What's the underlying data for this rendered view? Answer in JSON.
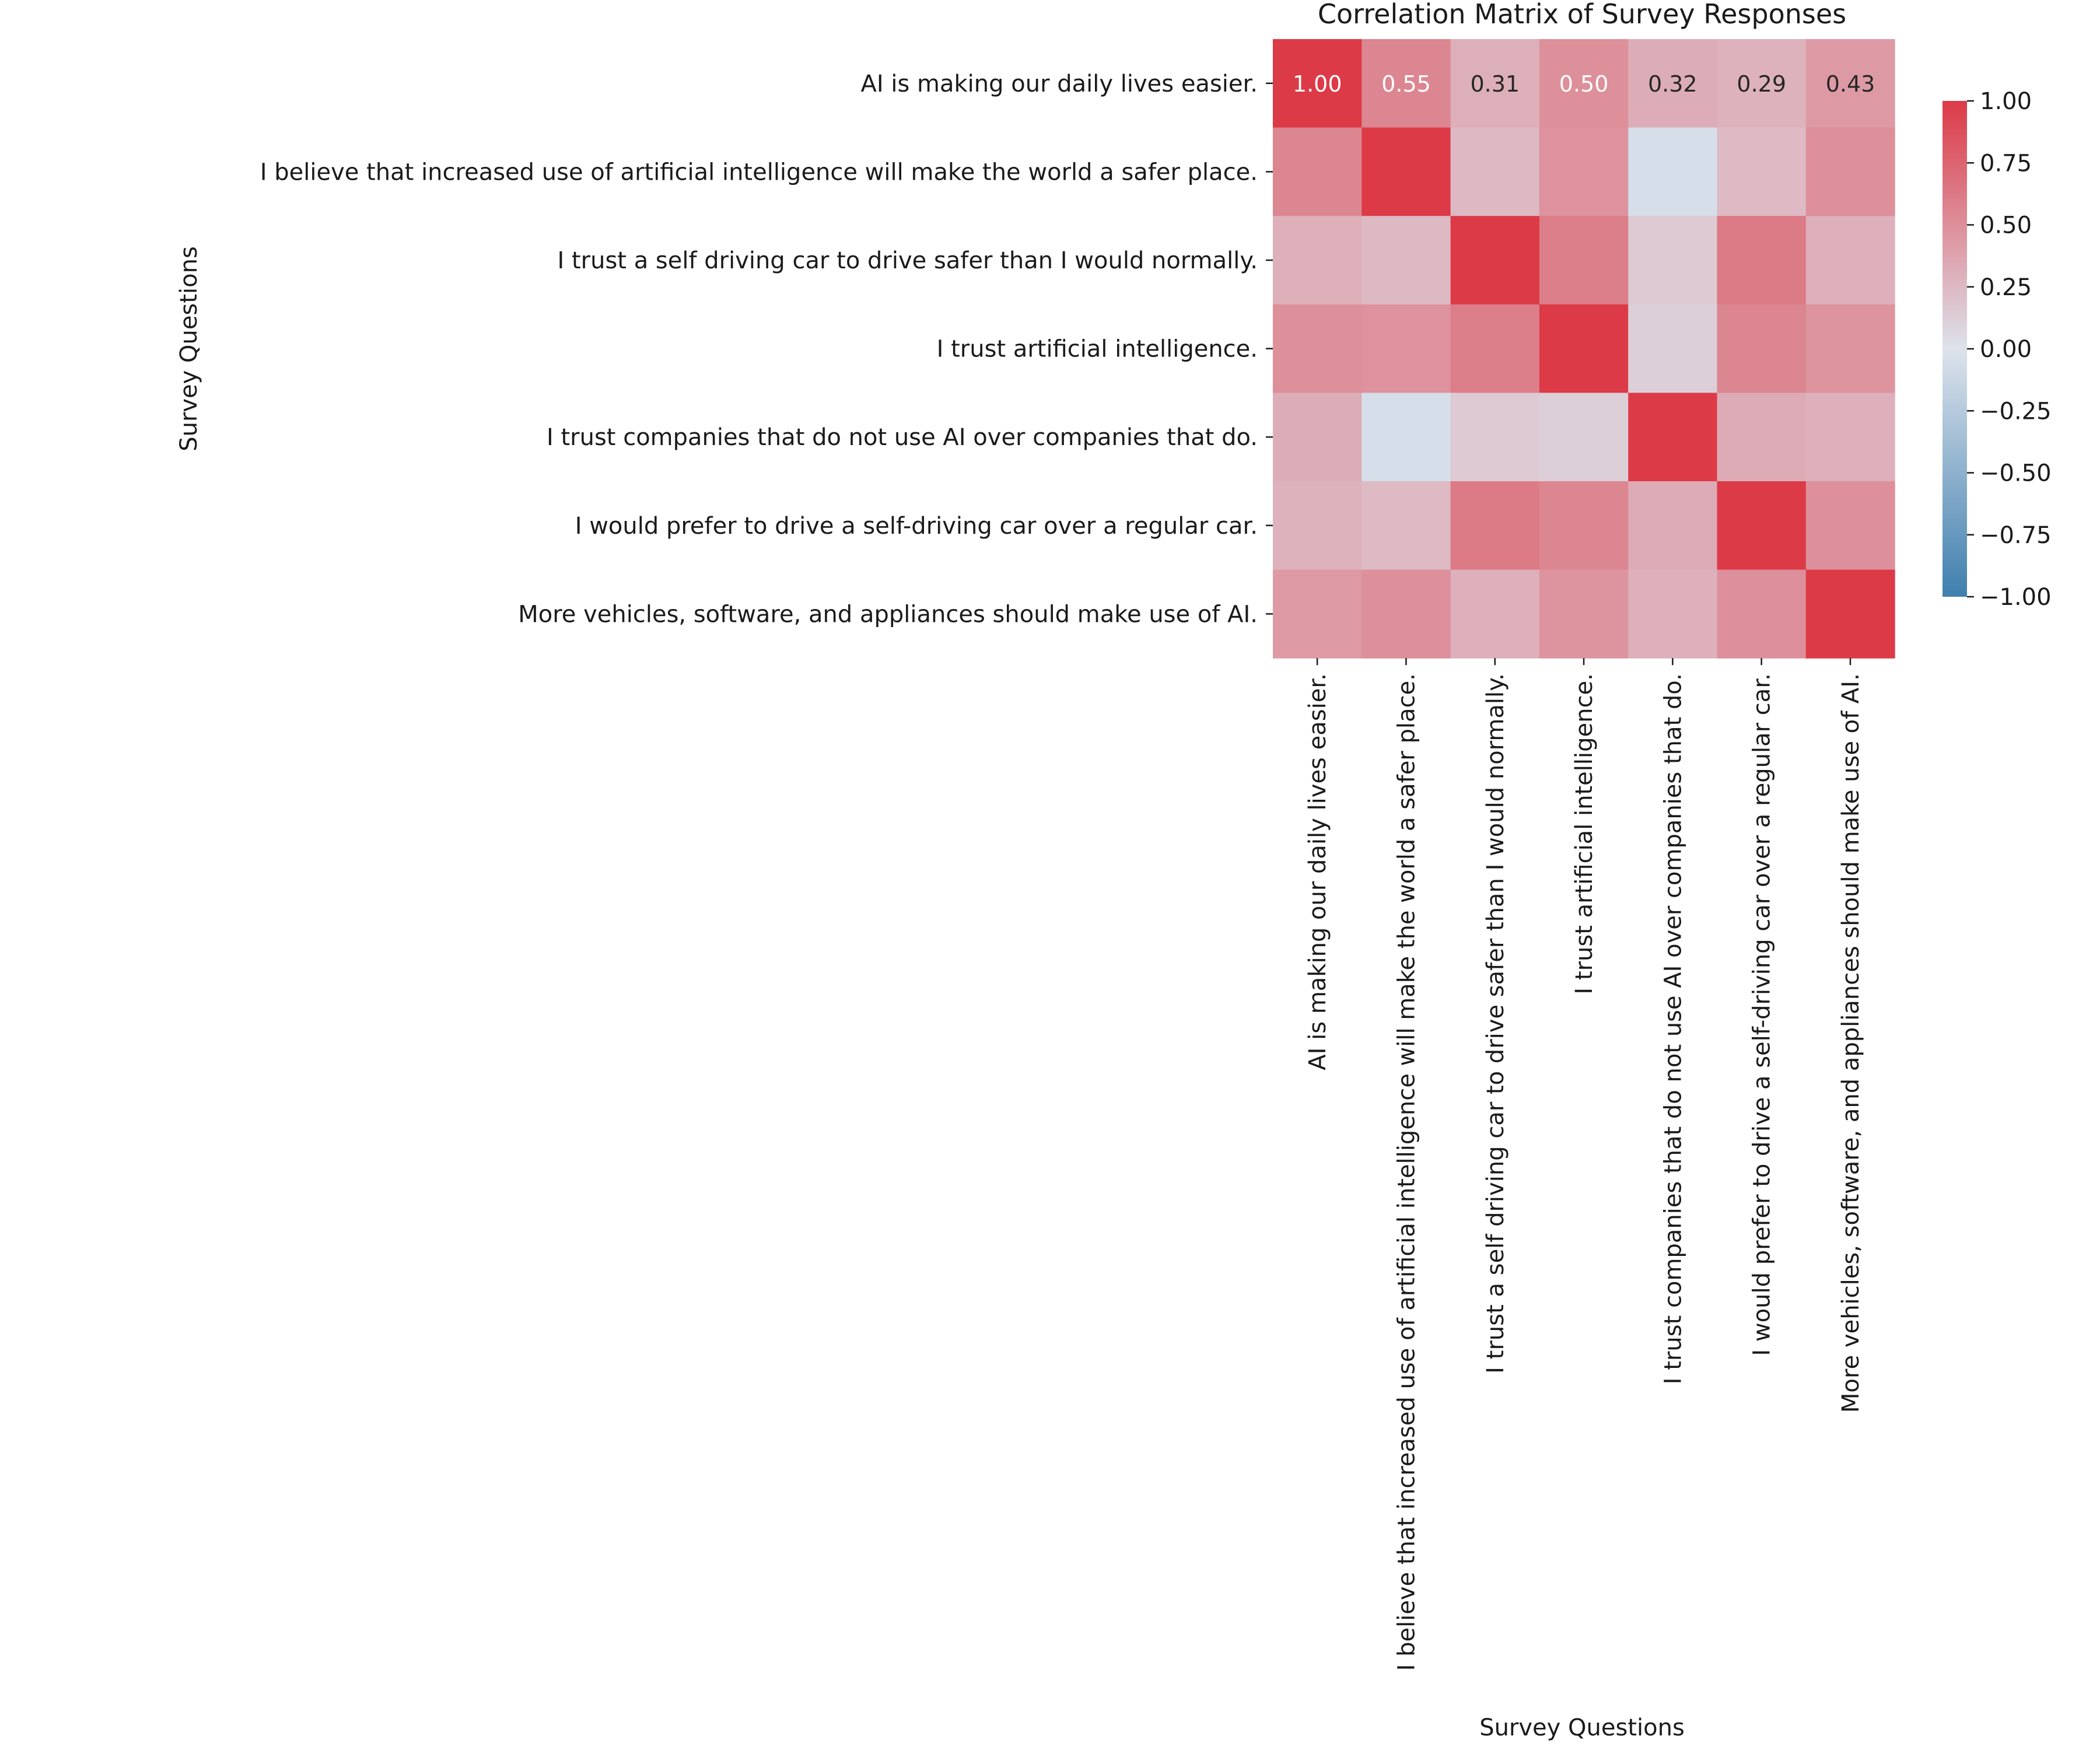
{
  "chart_data": {
    "type": "heatmap",
    "title": "Correlation Matrix of Survey Responses",
    "xlabel": "Survey Questions",
    "ylabel": "Survey Questions",
    "labels": [
      "AI is making our daily lives easier.",
      "I believe that increased use of artificial intelligence will make the world a safer place.",
      "I trust a self driving car to drive safer than I would normally.",
      "I trust artificial intelligence.",
      "I trust companies that do not use AI over companies that do.",
      "I would prefer to drive a self-driving car over a regular car.",
      "More vehicles, software, and appliances should make use of AI."
    ],
    "matrix": [
      [
        1.0,
        0.55,
        0.31,
        0.5,
        0.32,
        0.29,
        0.43
      ],
      [
        0.55,
        1.0,
        0.25,
        0.48,
        -0.05,
        0.24,
        0.5
      ],
      [
        0.31,
        0.25,
        1.0,
        0.6,
        0.15,
        0.62,
        0.3
      ],
      [
        0.5,
        0.48,
        0.6,
        1.0,
        0.12,
        0.55,
        0.47
      ],
      [
        0.32,
        -0.05,
        0.15,
        0.12,
        1.0,
        0.33,
        0.3
      ],
      [
        0.29,
        0.24,
        0.62,
        0.55,
        0.33,
        1.0,
        0.49
      ],
      [
        0.43,
        0.5,
        0.3,
        0.47,
        0.3,
        0.49,
        1.0
      ]
    ],
    "annotated_row": 0,
    "annotations": [
      "1.00",
      "0.55",
      "0.31",
      "0.50",
      "0.32",
      "0.29",
      "0.43"
    ],
    "colorbar": {
      "range": [
        -1,
        1
      ],
      "ticks": [
        "1.00",
        "0.75",
        "0.50",
        "0.25",
        "0.00",
        "−0.25",
        "−0.50",
        "−0.75",
        "−1.00"
      ]
    },
    "colormap": {
      "negative": "#3f7fae",
      "center": "#dde3ec",
      "positive": "#dc3a47"
    }
  }
}
